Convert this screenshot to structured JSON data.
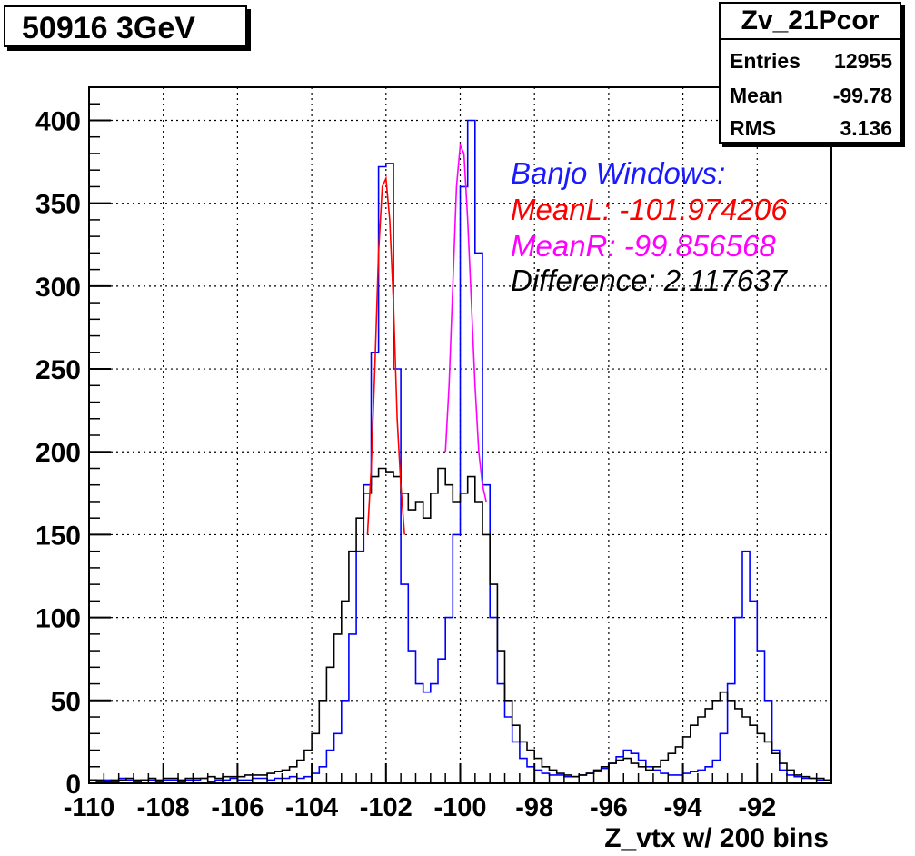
{
  "title": "50916 3GeV",
  "stats": {
    "name": "Zv_21Pcor",
    "rows": [
      {
        "label": "Entries",
        "value": "12955"
      },
      {
        "label": "Mean",
        "value": "-99.78"
      },
      {
        "label": "RMS",
        "value": "3.136"
      }
    ]
  },
  "annotations": [
    {
      "text": "Banjo Windows:",
      "color": "#1a1aff"
    },
    {
      "text": "MeanL: -101.974206",
      "color": "#ff0000"
    },
    {
      "text": "MeanR: -99.856568",
      "color": "#ff00ff"
    },
    {
      "text": "Difference: 2.117637",
      "color": "#000000"
    }
  ],
  "chart_data": {
    "type": "line",
    "xlabel": "Z_vtx w/ 200 bins",
    "ylabel": "",
    "xlim": [
      -110,
      -90
    ],
    "ylim": [
      0,
      420
    ],
    "xticks": [
      -110,
      -108,
      -106,
      -104,
      -102,
      -100,
      -98,
      -96,
      -94,
      -92
    ],
    "yticks": [
      0,
      50,
      100,
      150,
      200,
      250,
      300,
      350,
      400
    ],
    "grid": true,
    "bin_width": 0.2,
    "series": [
      {
        "color": "#0000ff",
        "style": "step",
        "x": [
          -110,
          -109.8,
          -109.6,
          -109.4,
          -109.2,
          -109,
          -108.8,
          -108.6,
          -108.4,
          -108.2,
          -108,
          -107.8,
          -107.6,
          -107.4,
          -107.2,
          -107,
          -106.8,
          -106.6,
          -106.4,
          -106.2,
          -106,
          -105.8,
          -105.6,
          -105.4,
          -105.2,
          -105,
          -104.8,
          -104.6,
          -104.4,
          -104.2,
          -104,
          -103.8,
          -103.6,
          -103.4,
          -103.2,
          -103,
          -102.8,
          -102.6,
          -102.4,
          -102.2,
          -102,
          -101.8,
          -101.6,
          -101.4,
          -101.2,
          -101,
          -100.8,
          -100.6,
          -100.4,
          -100.2,
          -100,
          -99.8,
          -99.6,
          -99.4,
          -99.2,
          -99,
          -98.8,
          -98.6,
          -98.4,
          -98.2,
          -98,
          -97.8,
          -97.6,
          -97.4,
          -97.2,
          -97,
          -96.8,
          -96.6,
          -96.4,
          -96.2,
          -96,
          -95.8,
          -95.6,
          -95.4,
          -95.2,
          -95,
          -94.8,
          -94.6,
          -94.4,
          -94.2,
          -94,
          -93.8,
          -93.6,
          -93.4,
          -93.2,
          -93,
          -92.8,
          -92.6,
          -92.4,
          -92.2,
          -92,
          -91.8,
          -91.6,
          -91.4,
          -91.2,
          -91,
          -90.8,
          -90.6,
          -90.4,
          -90.2
        ],
        "y": [
          2,
          1,
          2,
          1,
          3,
          2,
          1,
          2,
          2,
          1,
          2,
          2,
          1,
          2,
          2,
          3,
          1,
          2,
          2,
          3,
          2,
          2,
          3,
          3,
          2,
          3,
          3,
          4,
          3,
          4,
          6,
          10,
          20,
          30,
          50,
          90,
          140,
          180,
          260,
          372,
          374,
          250,
          120,
          80,
          60,
          55,
          60,
          75,
          100,
          150,
          360,
          400,
          320,
          180,
          100,
          60,
          40,
          25,
          15,
          10,
          8,
          6,
          5,
          5,
          4,
          4,
          5,
          6,
          7,
          9,
          12,
          16,
          20,
          18,
          14,
          10,
          8,
          6,
          5,
          5,
          6,
          7,
          8,
          10,
          14,
          30,
          60,
          100,
          140,
          110,
          80,
          50,
          20,
          8,
          5,
          4,
          3,
          3,
          2,
          2
        ]
      },
      {
        "color": "#000000",
        "style": "step",
        "x": [
          -110,
          -109.8,
          -109.6,
          -109.4,
          -109.2,
          -109,
          -108.8,
          -108.6,
          -108.4,
          -108.2,
          -108,
          -107.8,
          -107.6,
          -107.4,
          -107.2,
          -107,
          -106.8,
          -106.6,
          -106.4,
          -106.2,
          -106,
          -105.8,
          -105.6,
          -105.4,
          -105.2,
          -105,
          -104.8,
          -104.6,
          -104.4,
          -104.2,
          -104,
          -103.8,
          -103.6,
          -103.4,
          -103.2,
          -103,
          -102.8,
          -102.6,
          -102.4,
          -102.2,
          -102,
          -101.8,
          -101.6,
          -101.4,
          -101.2,
          -101,
          -100.8,
          -100.6,
          -100.4,
          -100.2,
          -100,
          -99.8,
          -99.6,
          -99.4,
          -99.2,
          -99,
          -98.8,
          -98.6,
          -98.4,
          -98.2,
          -98,
          -97.8,
          -97.6,
          -97.4,
          -97.2,
          -97,
          -96.8,
          -96.6,
          -96.4,
          -96.2,
          -96,
          -95.8,
          -95.6,
          -95.4,
          -95.2,
          -95,
          -94.8,
          -94.6,
          -94.4,
          -94.2,
          -94,
          -93.8,
          -93.6,
          -93.4,
          -93.2,
          -93,
          -92.8,
          -92.6,
          -92.4,
          -92.2,
          -92,
          -91.8,
          -91.6,
          -91.4,
          -91.2,
          -91,
          -90.8,
          -90.6,
          -90.4,
          -90.2
        ],
        "y": [
          2,
          2,
          1,
          2,
          2,
          3,
          2,
          2,
          3,
          2,
          3,
          3,
          2,
          3,
          3,
          3,
          4,
          3,
          4,
          4,
          4,
          5,
          5,
          5,
          6,
          7,
          8,
          10,
          14,
          20,
          30,
          50,
          70,
          90,
          110,
          140,
          160,
          175,
          185,
          190,
          188,
          185,
          175,
          165,
          170,
          160,
          175,
          190,
          180,
          170,
          175,
          185,
          170,
          150,
          120,
          80,
          50,
          35,
          25,
          20,
          15,
          10,
          8,
          6,
          5,
          4,
          5,
          6,
          8,
          10,
          12,
          14,
          15,
          12,
          10,
          8,
          10,
          14,
          18,
          22,
          28,
          35,
          40,
          45,
          50,
          55,
          50,
          45,
          40,
          35,
          30,
          25,
          18,
          12,
          8,
          5,
          4,
          3,
          3,
          2
        ]
      },
      {
        "color": "#ff0000",
        "style": "curve",
        "x": [
          -102.5,
          -102.4,
          -102.3,
          -102.2,
          -102.1,
          -102,
          -101.9,
          -101.8,
          -101.7,
          -101.6,
          -101.5
        ],
        "y": [
          150,
          190,
          250,
          320,
          360,
          365,
          340,
          290,
          220,
          180,
          150
        ]
      },
      {
        "color": "#ff00ff",
        "style": "curve",
        "x": [
          -100.4,
          -100.3,
          -100.2,
          -100.1,
          -100,
          -99.9,
          -99.8,
          -99.7,
          -99.6,
          -99.5,
          -99.4,
          -99.3
        ],
        "y": [
          200,
          240,
          300,
          360,
          385,
          380,
          340,
          290,
          240,
          200,
          180,
          170
        ]
      }
    ]
  }
}
